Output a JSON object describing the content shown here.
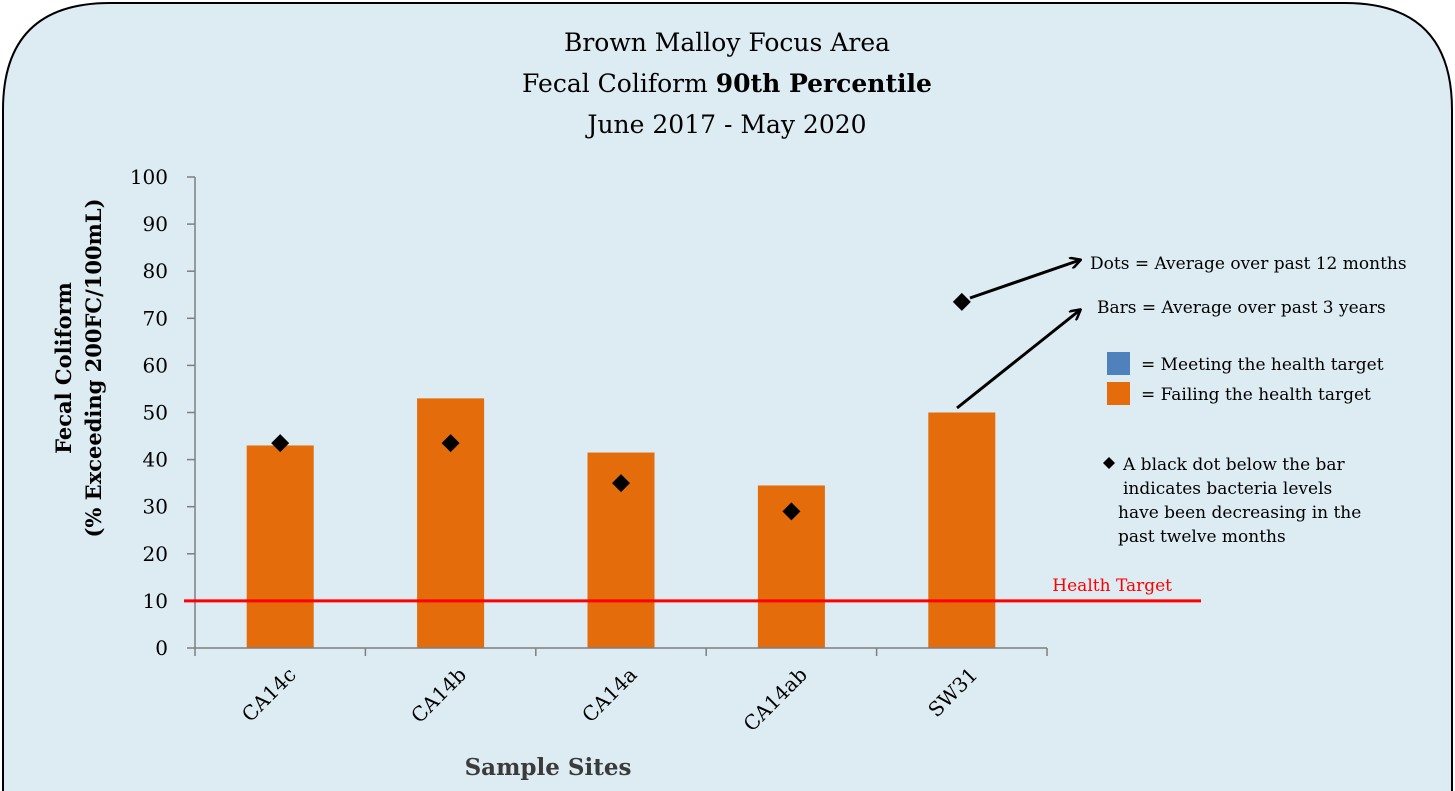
{
  "title": {
    "line1": "Brown Malloy Focus Area",
    "line2_prefix": "Fecal Coliform ",
    "line2_bold": "90th Percentile",
    "line3": "June 2017 - May 2020"
  },
  "colors": {
    "background": "#ddebf2",
    "bar_failing": "#e46c0a",
    "bar_meeting": "#4f81bd",
    "health_target": "#ff0000",
    "dot": "#000000"
  },
  "chart_data": {
    "type": "bar",
    "title": "Brown Malloy Focus Area Fecal Coliform 90th Percentile June 2017 - May 2020",
    "xlabel": "Sample Sites",
    "ylabel_line1": "Fecal Coliform",
    "ylabel_line2": "(% Exceeding 200FC/100mL)",
    "ylim": [
      0,
      100
    ],
    "yticks": [
      0,
      10,
      20,
      30,
      40,
      50,
      60,
      70,
      80,
      90,
      100
    ],
    "categories": [
      "CA14c",
      "CA14b",
      "CA14a",
      "CA14ab",
      "SW31"
    ],
    "series": [
      {
        "name": "Bars = Average over past 3 years",
        "kind": "bar",
        "values": [
          43,
          53,
          41.5,
          34.5,
          50
        ]
      },
      {
        "name": "Dots = Average over past 12 months",
        "kind": "marker",
        "values": [
          43.5,
          43.5,
          35,
          29,
          73.5
        ]
      }
    ],
    "health_target": {
      "value": 10,
      "label": "Health Target"
    },
    "grid": false
  },
  "legend": {
    "dots_label": "Dots = Average over past 12 months",
    "bars_label": "Bars = Average over past 3 years",
    "meeting_label": "= Meeting the health target",
    "failing_label": "= Failing the health target",
    "dot_note_lines": [
      "A black dot below  the bar",
      "indicates bacteria levels",
      "have been decreasing in the",
      "past twelve months"
    ]
  }
}
